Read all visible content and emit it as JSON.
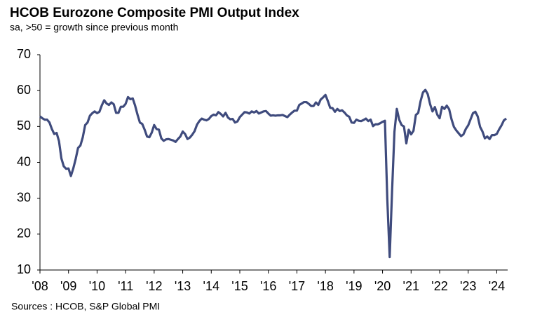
{
  "chart_data": {
    "type": "line",
    "title": "HCOB Eurozone Composite PMI Output Index",
    "subtitle": "sa, >50 = growth since previous month",
    "source": "Sources : HCOB, S&P Global PMI",
    "color": "#3f4b7d",
    "categories": [
      "'08",
      null,
      null,
      null,
      null,
      null,
      null,
      null,
      null,
      null,
      null,
      null,
      "'09",
      null,
      null,
      null,
      null,
      null,
      null,
      null,
      null,
      null,
      null,
      null,
      "'10",
      null,
      null,
      null,
      null,
      null,
      null,
      null,
      null,
      null,
      null,
      null,
      "'11",
      null,
      null,
      null,
      null,
      null,
      null,
      null,
      null,
      null,
      null,
      null,
      "'12",
      null,
      null,
      null,
      null,
      null,
      null,
      null,
      null,
      null,
      null,
      null,
      "'13",
      null,
      null,
      null,
      null,
      null,
      null,
      null,
      null,
      null,
      null,
      null,
      "'14",
      null,
      null,
      null,
      null,
      null,
      null,
      null,
      null,
      null,
      null,
      null,
      "'15",
      null,
      null,
      null,
      null,
      null,
      null,
      null,
      null,
      null,
      null,
      null,
      "'16",
      null,
      null,
      null,
      null,
      null,
      null,
      null,
      null,
      null,
      null,
      null,
      "'17",
      null,
      null,
      null,
      null,
      null,
      null,
      null,
      null,
      null,
      null,
      null,
      "'18",
      null,
      null,
      null,
      null,
      null,
      null,
      null,
      null,
      null,
      null,
      null,
      "'19",
      null,
      null,
      null,
      null,
      null,
      null,
      null,
      null,
      null,
      null,
      null,
      "'20",
      null,
      null,
      null,
      null,
      null,
      null,
      null,
      null,
      null,
      null,
      null,
      "'21",
      null,
      null,
      null,
      null,
      null,
      null,
      null,
      null,
      null,
      null,
      null,
      "'22",
      null,
      null,
      null,
      null,
      null,
      null,
      null,
      null,
      null,
      null,
      null,
      "'23",
      null,
      null,
      null,
      null,
      null,
      null,
      null,
      null,
      null,
      null,
      null,
      "'24",
      null,
      null,
      null,
      null
    ],
    "values": [
      52.8,
      52.3,
      51.9,
      51.9,
      51.1,
      49.3,
      47.9,
      48.2,
      45.9,
      41.1,
      38.9,
      38.2,
      38.3,
      36.2,
      38.3,
      40.9,
      44.0,
      44.7,
      47.0,
      50.4,
      51.1,
      53.0,
      53.7,
      54.2,
      53.7,
      54.1,
      55.9,
      57.3,
      56.4,
      56.0,
      56.7,
      56.2,
      53.8,
      53.8,
      55.5,
      55.5,
      56.3,
      58.2,
      57.6,
      57.8,
      55.8,
      53.3,
      51.1,
      50.7,
      49.1,
      47.2,
      47.0,
      48.3,
      50.4,
      49.3,
      49.1,
      46.7,
      46.0,
      46.4,
      46.5,
      46.3,
      46.1,
      45.7,
      46.5,
      47.2,
      48.6,
      47.9,
      46.5,
      46.9,
      47.7,
      48.7,
      50.5,
      51.5,
      52.2,
      51.9,
      51.7,
      52.1,
      52.9,
      53.3,
      53.1,
      54.0,
      53.5,
      52.8,
      53.8,
      52.5,
      52.0,
      52.1,
      51.1,
      51.4,
      52.6,
      53.3,
      54.0,
      53.9,
      53.6,
      54.2,
      53.9,
      54.3,
      53.6,
      53.9,
      54.2,
      54.3,
      53.6,
      53.0,
      53.1,
      53.0,
      53.1,
      53.1,
      53.2,
      52.9,
      52.6,
      53.3,
      53.9,
      54.4,
      54.4,
      56.0,
      56.4,
      56.8,
      56.8,
      56.3,
      55.7,
      55.7,
      56.7,
      56.0,
      57.5,
      58.1,
      58.8,
      57.1,
      55.2,
      55.1,
      54.1,
      54.9,
      54.3,
      54.5,
      53.9,
      53.1,
      52.7,
      51.1,
      51.0,
      51.9,
      51.6,
      51.5,
      51.8,
      52.2,
      51.5,
      51.9,
      50.1,
      50.6,
      50.6,
      50.9,
      51.3,
      51.6,
      29.7,
      13.6,
      31.9,
      48.5,
      54.9,
      51.9,
      50.4,
      50.0,
      45.3,
      49.1,
      47.8,
      48.8,
      53.2,
      53.8,
      57.1,
      59.5,
      60.2,
      59.0,
      56.2,
      54.2,
      55.4,
      53.3,
      52.3,
      55.5,
      54.9,
      55.8,
      54.8,
      52.0,
      49.9,
      48.9,
      48.1,
      47.3,
      47.8,
      49.3,
      50.3,
      52.0,
      53.7,
      54.1,
      52.8,
      49.9,
      48.6,
      46.7,
      47.2,
      46.5,
      47.6,
      47.6,
      47.9,
      49.2,
      50.3,
      51.7,
      52.2
    ],
    "ylim": [
      10,
      70
    ],
    "yticks": [
      10,
      20,
      30,
      40,
      50,
      60,
      70
    ]
  }
}
